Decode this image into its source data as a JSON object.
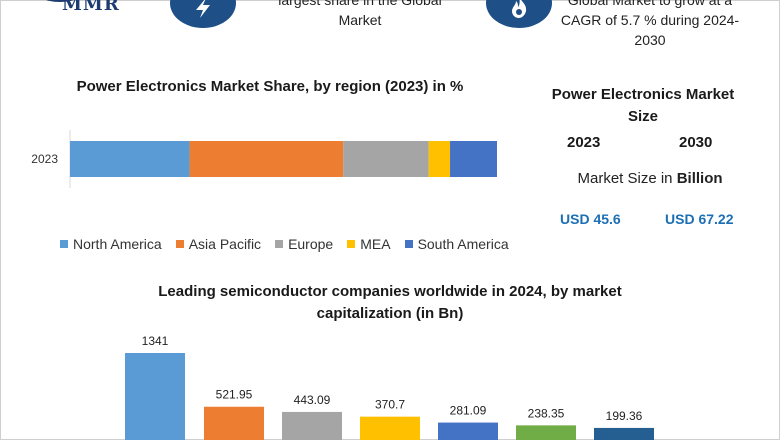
{
  "brand": {
    "logo_text": "MMR"
  },
  "header": {
    "left_text_lines": [
      "largest share in the Global",
      "Market"
    ],
    "right_text_lines": [
      "Global Market to grow at a",
      "CAGR of 5.7 % during 2024-",
      "2030"
    ]
  },
  "icons": {
    "left": "lightning-bolt-icon",
    "right": "flame-icon"
  },
  "market_size": {
    "title": "Power Electronics Market Size",
    "years": [
      "2023",
      "2030"
    ],
    "label_prefix": "Market Size in ",
    "label_unit": "Billion",
    "values": [
      "USD 45.6",
      "USD 67.22"
    ],
    "value_color": "#1c6fb5"
  },
  "chart_data": [
    {
      "type": "bar",
      "orientation": "horizontal",
      "stacked": true,
      "title": "Power Electronics Market Share, by region (2023) in %",
      "categories": [
        "2023"
      ],
      "series": [
        {
          "name": "North America",
          "values": [
            28
          ],
          "color": "#5b9bd5"
        },
        {
          "name": "Asia Pacific",
          "values": [
            36
          ],
          "color": "#ed7d31"
        },
        {
          "name": "Europe",
          "values": [
            20
          ],
          "color": "#a5a5a5"
        },
        {
          "name": "MEA",
          "values": [
            5
          ],
          "color": "#ffc000"
        },
        {
          "name": "South America",
          "values": [
            11
          ],
          "color": "#4472c4"
        }
      ],
      "xlim": [
        0,
        100
      ],
      "legend": "bottom",
      "grid": false
    },
    {
      "type": "bar",
      "title": "Leading semiconductor companies worldwide in 2024, by market capitalization (in Bn)",
      "categories": [
        "",
        "",
        "",
        "",
        "",
        "",
        ""
      ],
      "values": [
        1341,
        521.95,
        443.09,
        370.7,
        281.09,
        238.35,
        199.36
      ],
      "data_labels": [
        "1341",
        "521.95",
        "443.09",
        "370.7",
        "281.09",
        "238.35",
        "199.36"
      ],
      "colors": [
        "#5b9bd5",
        "#ed7d31",
        "#a5a5a5",
        "#ffc000",
        "#4472c4",
        "#70ad47",
        "#255e91"
      ],
      "ylim": [
        0,
        1400
      ],
      "grid": false
    }
  ]
}
